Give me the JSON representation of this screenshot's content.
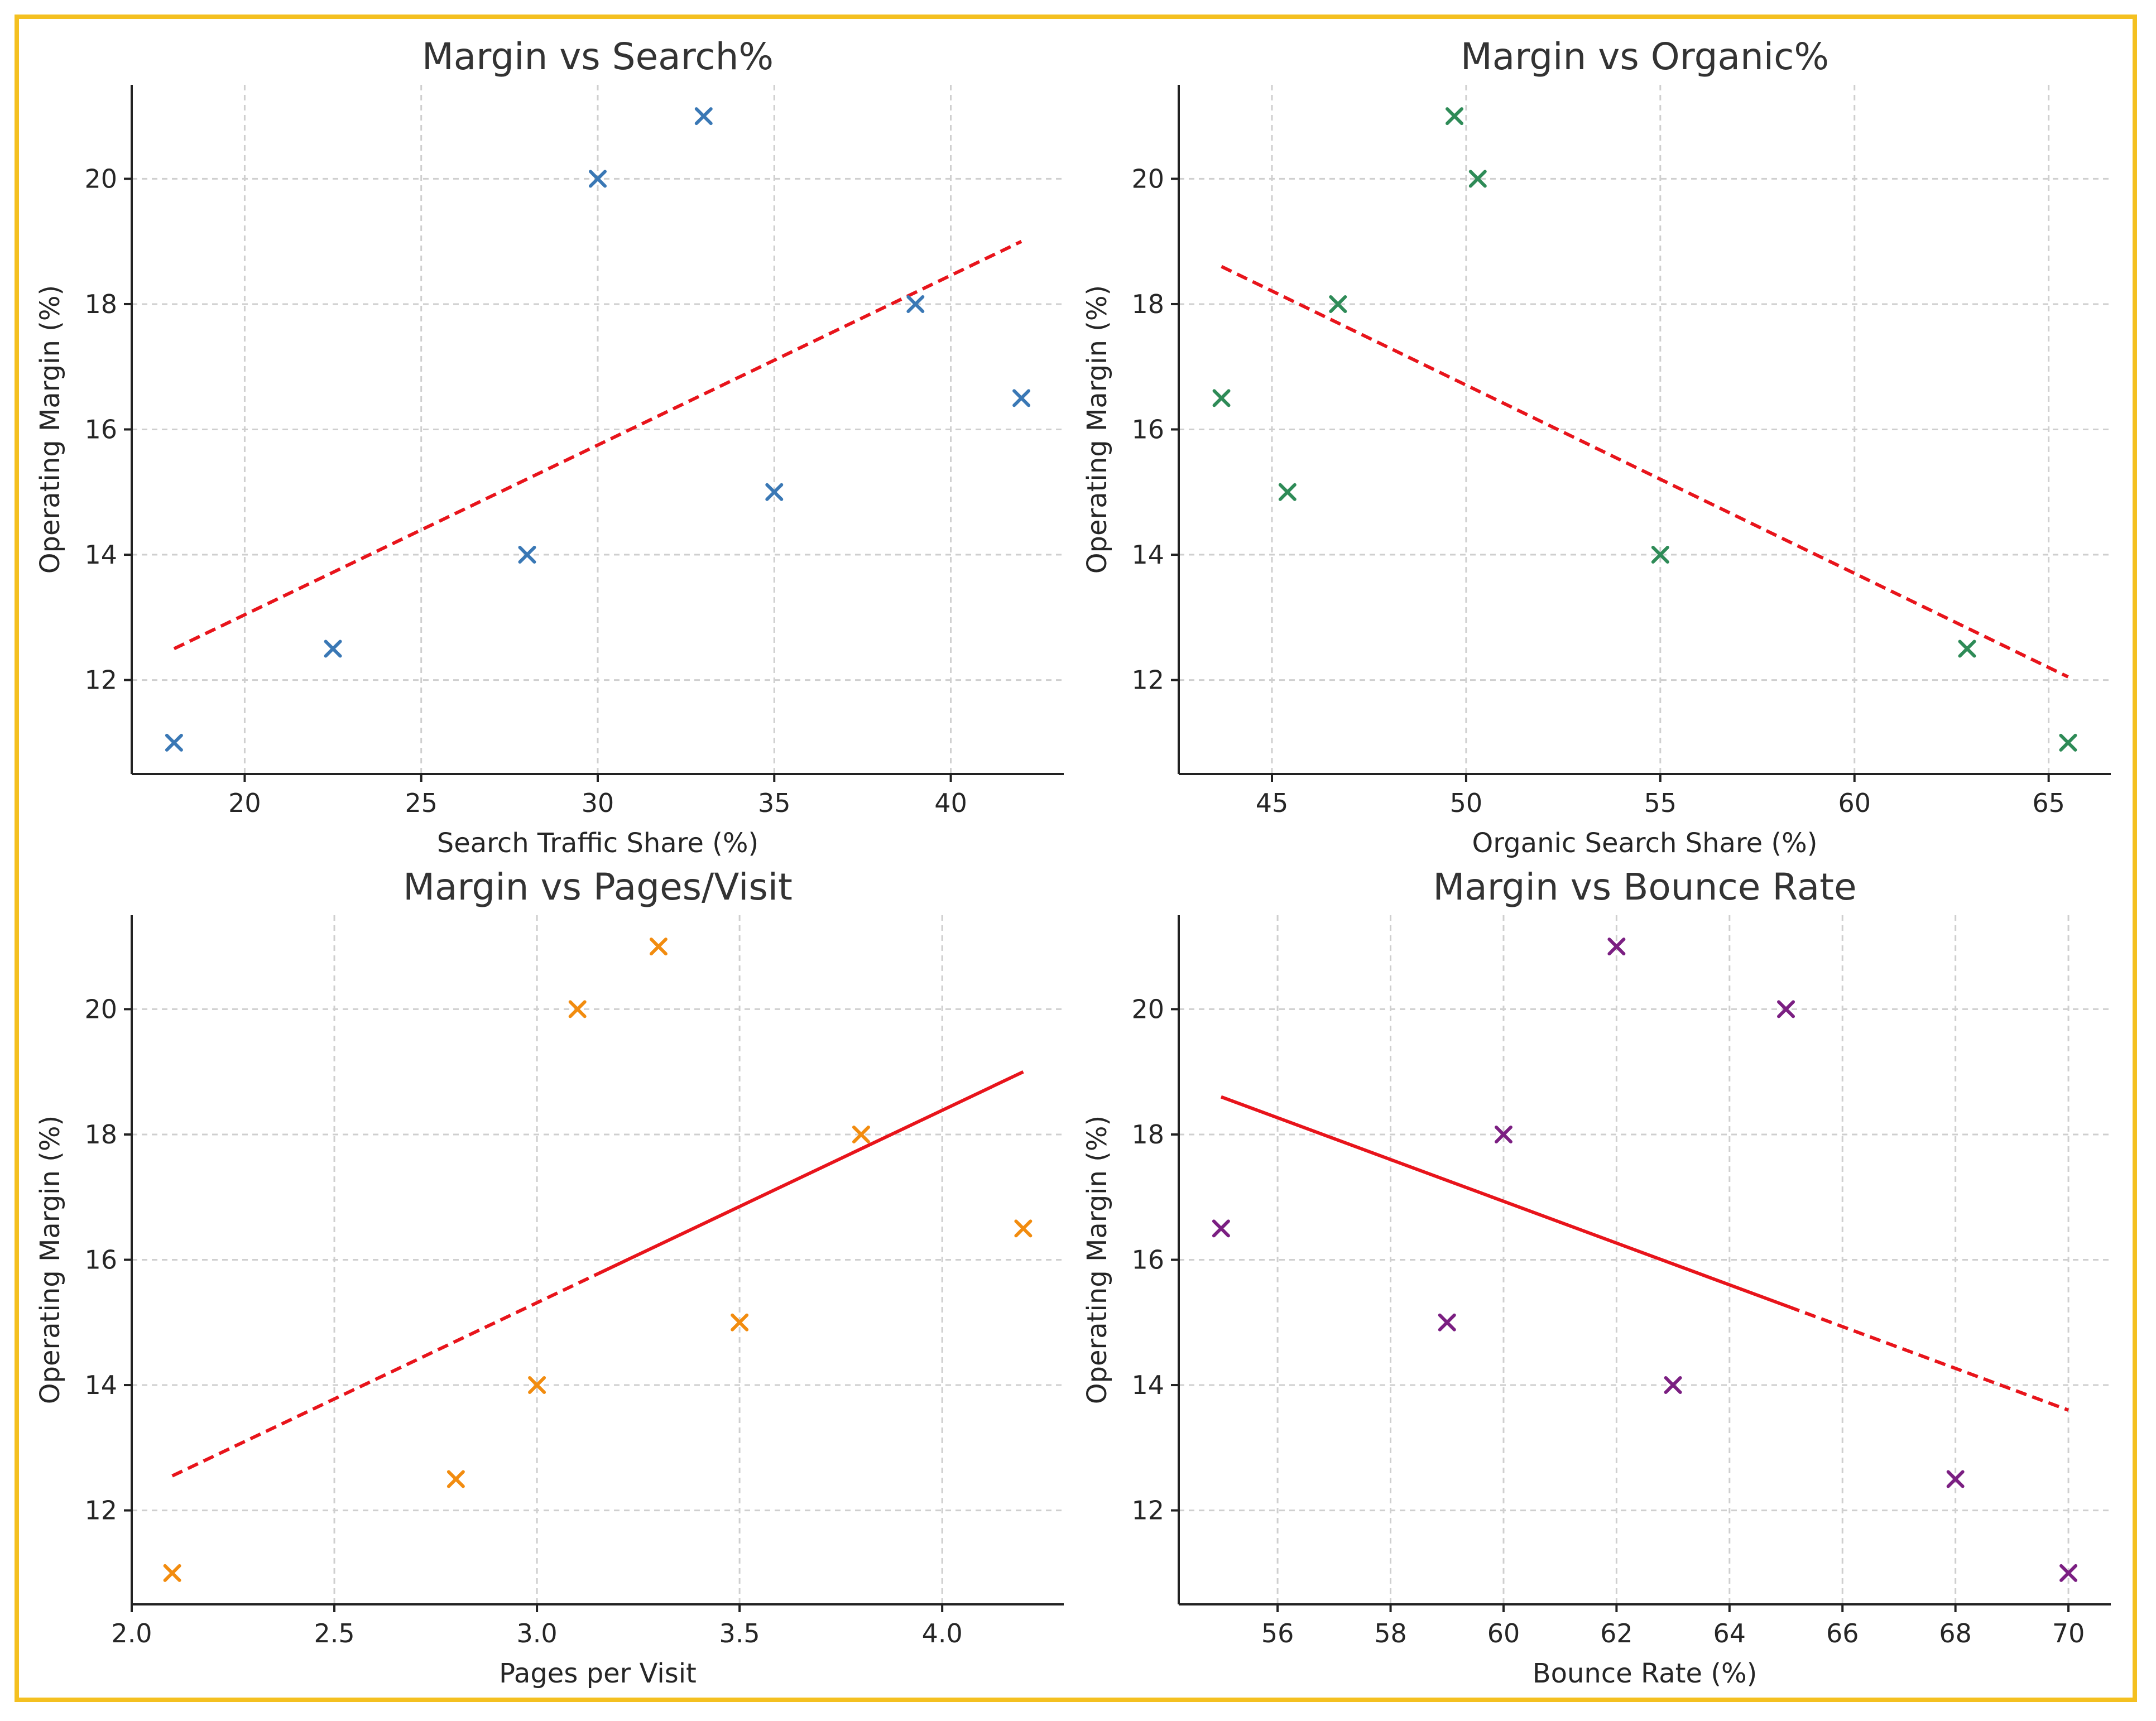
{
  "chart_data": [
    {
      "type": "scatter",
      "title": "Margin vs Search%",
      "xlabel": "Search Traffic Share (%)",
      "ylabel": "Operating Margin (%)",
      "xlim": [
        16.8,
        43.2
      ],
      "ylim": [
        10.5,
        21.5
      ],
      "xticks": [
        20,
        25,
        30,
        35,
        40
      ],
      "xtick_labels": [
        "20",
        "25",
        "30",
        "35",
        "40"
      ],
      "yticks": [
        12,
        14,
        16,
        18,
        20
      ],
      "ytick_labels": [
        "12",
        "14",
        "16",
        "18",
        "20"
      ],
      "marker_color": "#3a78b5",
      "trend_color": "#e8141b",
      "trend_style": "dashed",
      "grid": true,
      "points": [
        {
          "x": 18,
          "y": 11
        },
        {
          "x": 22.5,
          "y": 12.5
        },
        {
          "x": 28,
          "y": 14
        },
        {
          "x": 30,
          "y": 20
        },
        {
          "x": 33,
          "y": 21
        },
        {
          "x": 35,
          "y": 15
        },
        {
          "x": 39,
          "y": 18
        },
        {
          "x": 42,
          "y": 16.5
        }
      ],
      "trend": [
        {
          "x": 18,
          "y": 12.5
        },
        {
          "x": 42,
          "y": 19.0
        }
      ]
    },
    {
      "type": "scatter",
      "title": "Margin vs Organic%",
      "xlabel": "Organic Search Share (%)",
      "ylabel": "Operating Margin (%)",
      "xlim": [
        42.6,
        66.6
      ],
      "ylim": [
        10.5,
        21.5
      ],
      "xticks": [
        45,
        50,
        55,
        60,
        65
      ],
      "xtick_labels": [
        "45",
        "50",
        "55",
        "60",
        "65"
      ],
      "yticks": [
        12,
        14,
        16,
        18,
        20
      ],
      "ytick_labels": [
        "12",
        "14",
        "16",
        "18",
        "20"
      ],
      "marker_color": "#2e8b57",
      "trend_color": "#e8141b",
      "trend_style": "dashed",
      "grid": true,
      "points": [
        {
          "x": 43.7,
          "y": 16.5
        },
        {
          "x": 45.4,
          "y": 15
        },
        {
          "x": 46.7,
          "y": 18
        },
        {
          "x": 49.7,
          "y": 21
        },
        {
          "x": 50.3,
          "y": 20
        },
        {
          "x": 55.0,
          "y": 14
        },
        {
          "x": 62.9,
          "y": 12.5
        },
        {
          "x": 65.5,
          "y": 11
        }
      ],
      "trend": [
        {
          "x": 43.7,
          "y": 18.6
        },
        {
          "x": 65.5,
          "y": 12.05
        }
      ]
    },
    {
      "type": "scatter",
      "title": "Margin vs Pages/Visit",
      "xlabel": "Pages per Visit",
      "ylabel": "Operating Margin (%)",
      "xlim": [
        2.0,
        4.3
      ],
      "ylim": [
        10.5,
        21.5
      ],
      "xticks": [
        2.0,
        2.5,
        3.0,
        3.5,
        4.0
      ],
      "xtick_labels": [
        "2.0",
        "2.5",
        "3.0",
        "3.5",
        "4.0"
      ],
      "yticks": [
        12,
        14,
        16,
        18,
        20
      ],
      "ytick_labels": [
        "12",
        "14",
        "16",
        "18",
        "20"
      ],
      "marker_color": "#f28c0f",
      "trend_color": "#e8141b",
      "trend_style": "dashed-then-solid",
      "grid": true,
      "points": [
        {
          "x": 2.1,
          "y": 11
        },
        {
          "x": 2.8,
          "y": 12.5
        },
        {
          "x": 3.0,
          "y": 14
        },
        {
          "x": 3.1,
          "y": 20
        },
        {
          "x": 3.3,
          "y": 21
        },
        {
          "x": 3.5,
          "y": 15
        },
        {
          "x": 3.8,
          "y": 18
        },
        {
          "x": 4.2,
          "y": 16.5
        }
      ],
      "trend": [
        {
          "x": 2.1,
          "y": 12.55
        },
        {
          "x": 4.2,
          "y": 19.0
        }
      ]
    },
    {
      "type": "scatter",
      "title": "Margin vs Bounce Rate",
      "xlabel": "Bounce Rate (%)",
      "ylabel": "Operating Margin (%)",
      "xlim": [
        54.25,
        70.75
      ],
      "ylim": [
        10.5,
        21.5
      ],
      "xticks": [
        56,
        58,
        60,
        62,
        64,
        66,
        68,
        70
      ],
      "xtick_labels": [
        "56",
        "58",
        "60",
        "62",
        "64",
        "66",
        "68",
        "70"
      ],
      "yticks": [
        12,
        14,
        16,
        18,
        20
      ],
      "ytick_labels": [
        "12",
        "14",
        "16",
        "18",
        "20"
      ],
      "marker_color": "#7b1f82",
      "trend_color": "#e8141b",
      "trend_style": "solid-then-dashed",
      "grid": true,
      "points": [
        {
          "x": 55,
          "y": 16.5
        },
        {
          "x": 59,
          "y": 15
        },
        {
          "x": 60,
          "y": 18
        },
        {
          "x": 62,
          "y": 21
        },
        {
          "x": 63,
          "y": 14
        },
        {
          "x": 65,
          "y": 20
        },
        {
          "x": 68,
          "y": 12.5
        },
        {
          "x": 70,
          "y": 11
        }
      ],
      "trend": [
        {
          "x": 55,
          "y": 18.6
        },
        {
          "x": 70,
          "y": 13.6
        }
      ]
    }
  ]
}
